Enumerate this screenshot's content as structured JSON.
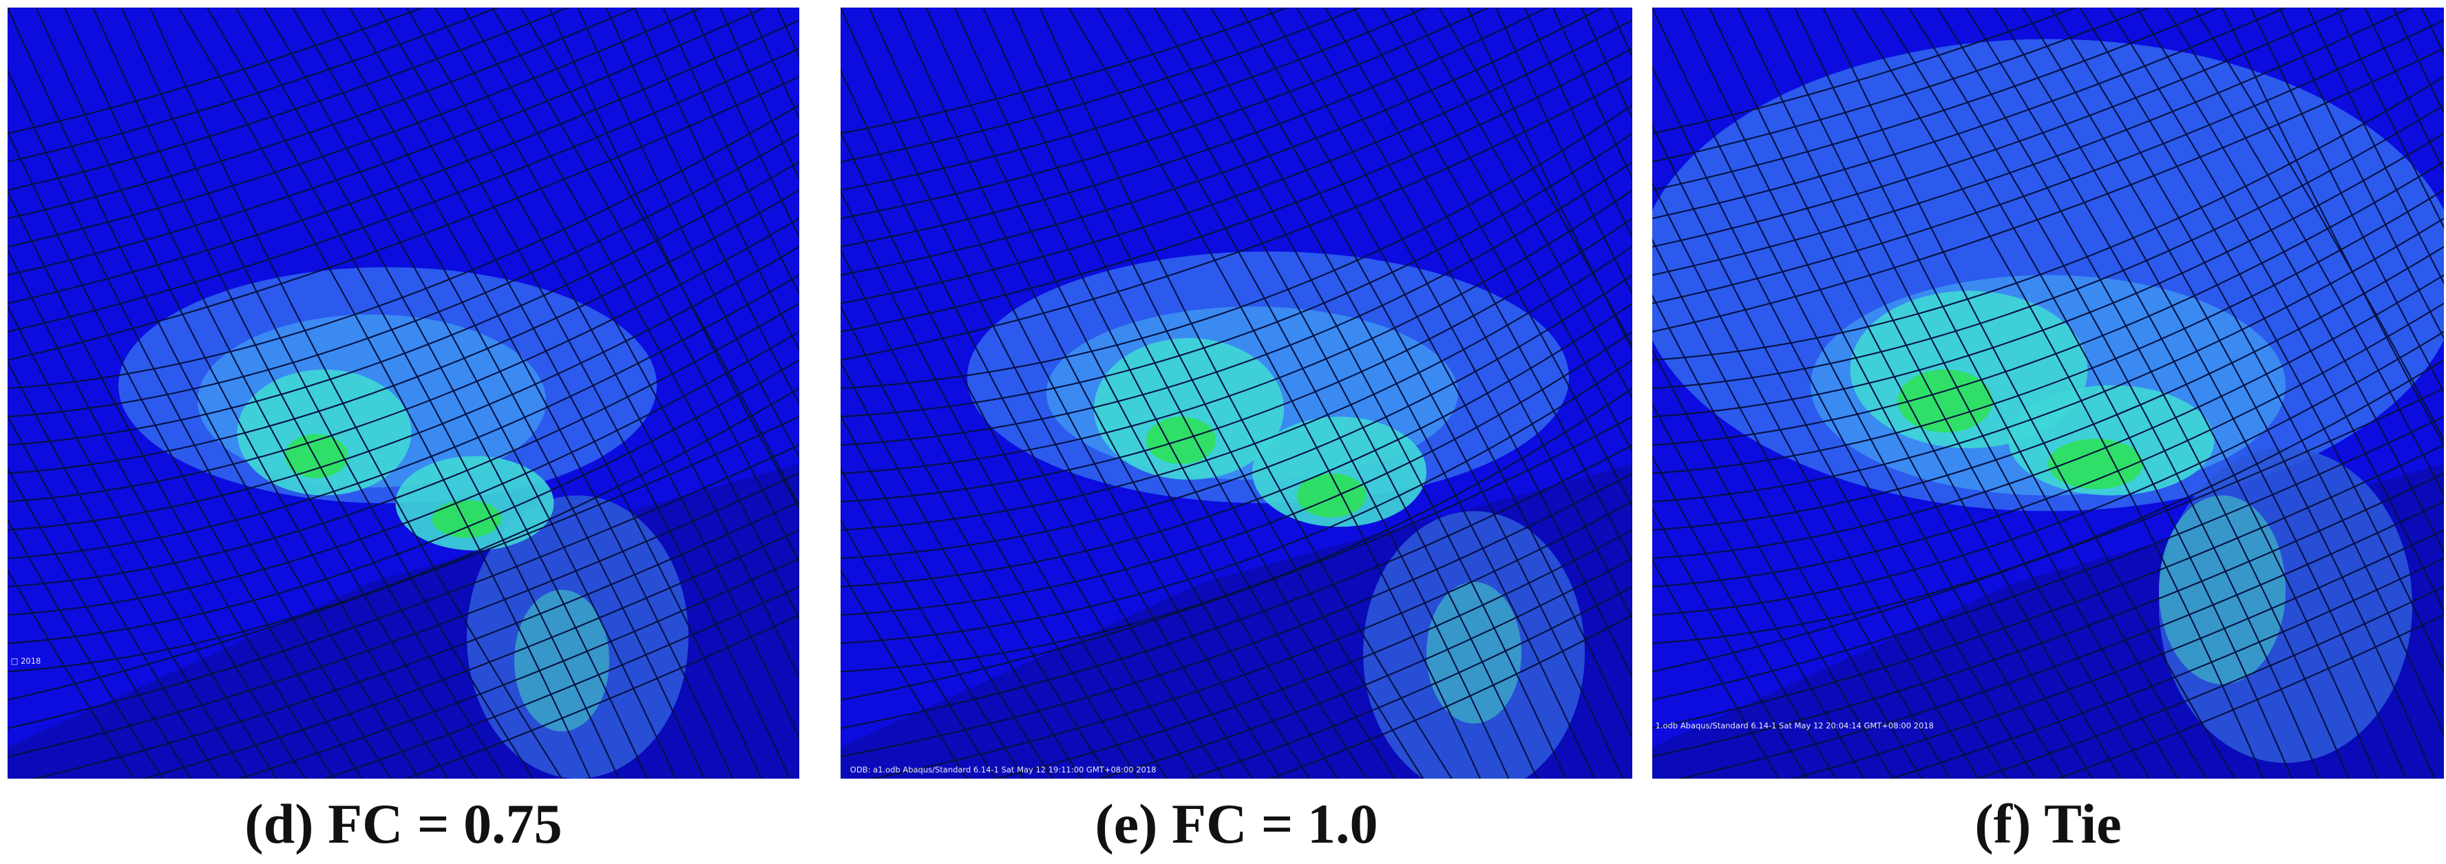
{
  "panels": [
    {
      "caption": "(d) FC = 0.75",
      "stamp": "□ 2018"
    },
    {
      "caption": "(e) FC = 1.0",
      "stamp": "ODB: a1.odb   Abaqus/Standard 6.14-1   Sat May 12 19:11:00 GMT+08:00 2018"
    },
    {
      "caption": "(f) Tie",
      "stamp": "1.odb   Abaqus/Standard 6.14-1   Sat May 12 20:04:14 GMT+08:00 2018"
    }
  ]
}
